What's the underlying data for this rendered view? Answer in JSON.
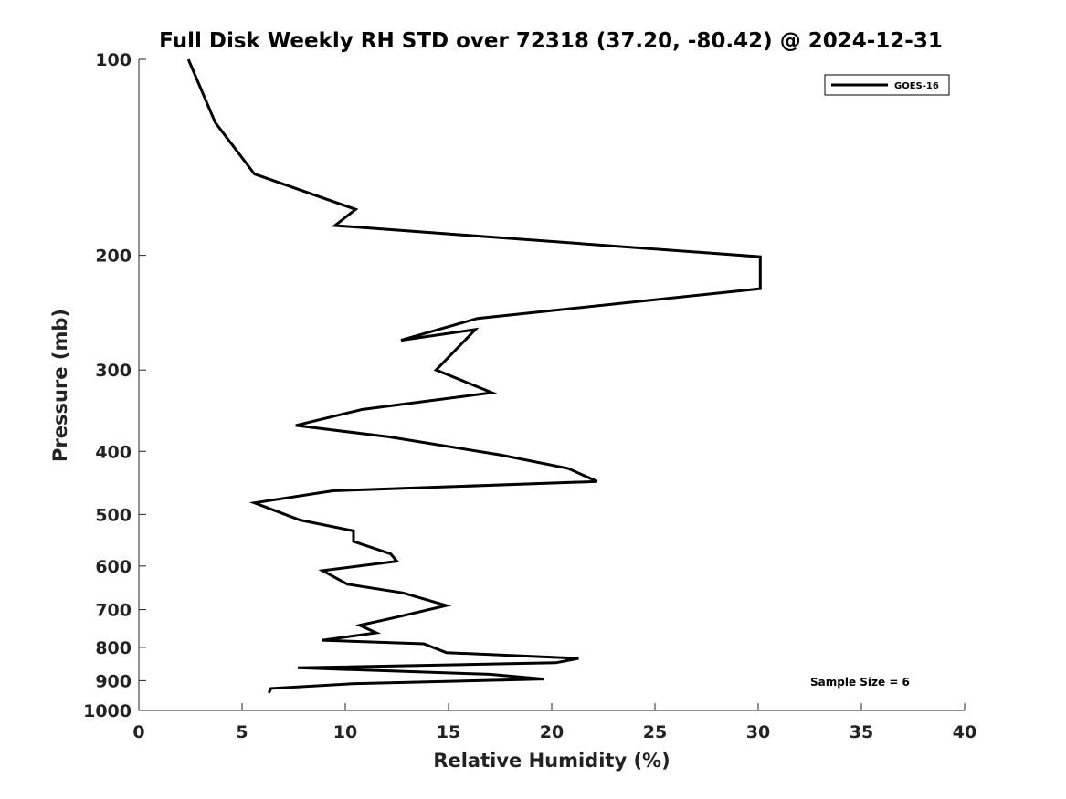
{
  "chart_data": {
    "type": "line",
    "title": "Full Disk Weekly RH STD over 72318 (37.20, -80.42) @ 2024-12-31",
    "xlabel": "Relative Humidity (%)",
    "ylabel": "Pressure (mb)",
    "xlim": [
      0,
      40
    ],
    "ylim": [
      100,
      1000
    ],
    "yscale": "log",
    "y_reversed": true,
    "grid": false,
    "legend_position": "top-right",
    "x_ticks": [
      0,
      5,
      10,
      15,
      20,
      25,
      30,
      35,
      40
    ],
    "x_tick_labels": [
      "0",
      "5",
      "10",
      "15",
      "20",
      "25",
      "30",
      "35",
      "40"
    ],
    "y_ticks": [
      100,
      200,
      300,
      400,
      500,
      600,
      700,
      800,
      900,
      1000
    ],
    "y_tick_labels": [
      "100",
      "200",
      "300",
      "400",
      "500",
      "600",
      "700",
      "800",
      "900",
      "1000"
    ],
    "series": [
      {
        "name": "GOES-16",
        "color": "#000000",
        "x": [
          2.4,
          3.7,
          5.6,
          10.5,
          9.5,
          30.1,
          30.1,
          16.4,
          12.7,
          16.3,
          14.4,
          17.1,
          10.8,
          7.6,
          12.1,
          17.5,
          20.8,
          22.2,
          9.4,
          5.6,
          7.8,
          10.4,
          10.4,
          12.2,
          12.5,
          8.9,
          10.1,
          12.8,
          14.9,
          12.4,
          10.7,
          11.5,
          8.9,
          13.8,
          14.9,
          21.3,
          20.2,
          7.7,
          17.0,
          19.6,
          10.3,
          6.4,
          6.3
        ],
        "y": [
          100,
          125,
          150,
          170,
          180,
          201,
          225,
          250,
          270,
          260,
          300,
          325,
          345,
          365,
          380,
          405,
          425,
          445,
          460,
          480,
          510,
          530,
          550,
          575,
          590,
          610,
          640,
          660,
          690,
          720,
          740,
          760,
          780,
          790,
          815,
          832,
          845,
          860,
          880,
          895,
          910,
          925,
          940
        ]
      }
    ],
    "legend": [
      "GOES-16"
    ],
    "annotations": [
      "Sample Size = 6"
    ]
  }
}
